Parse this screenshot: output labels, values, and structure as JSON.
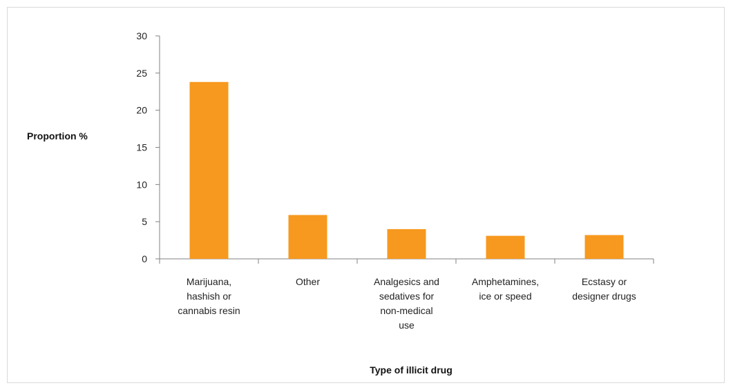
{
  "chart_data": {
    "type": "bar",
    "categories": [
      [
        "Marijuana,",
        "hashish or",
        "cannabis resin"
      ],
      [
        "Other"
      ],
      [
        "Analgesics and",
        "sedatives for",
        "non-medical",
        "use"
      ],
      [
        "Amphetamines,",
        "ice or speed"
      ],
      [
        "Ecstasy or",
        "designer drugs"
      ]
    ],
    "values": [
      23.8,
      5.9,
      4.0,
      3.1,
      3.2
    ],
    "ylabel": "Proportion %",
    "xlabel": "Type of illicit drug",
    "ylim": [
      0,
      30
    ],
    "yticks": [
      "0",
      "5",
      "10",
      "15",
      "20",
      "25",
      "30"
    ],
    "bar_color": "#F7991E",
    "axis_color": "#808080",
    "grid": false
  }
}
